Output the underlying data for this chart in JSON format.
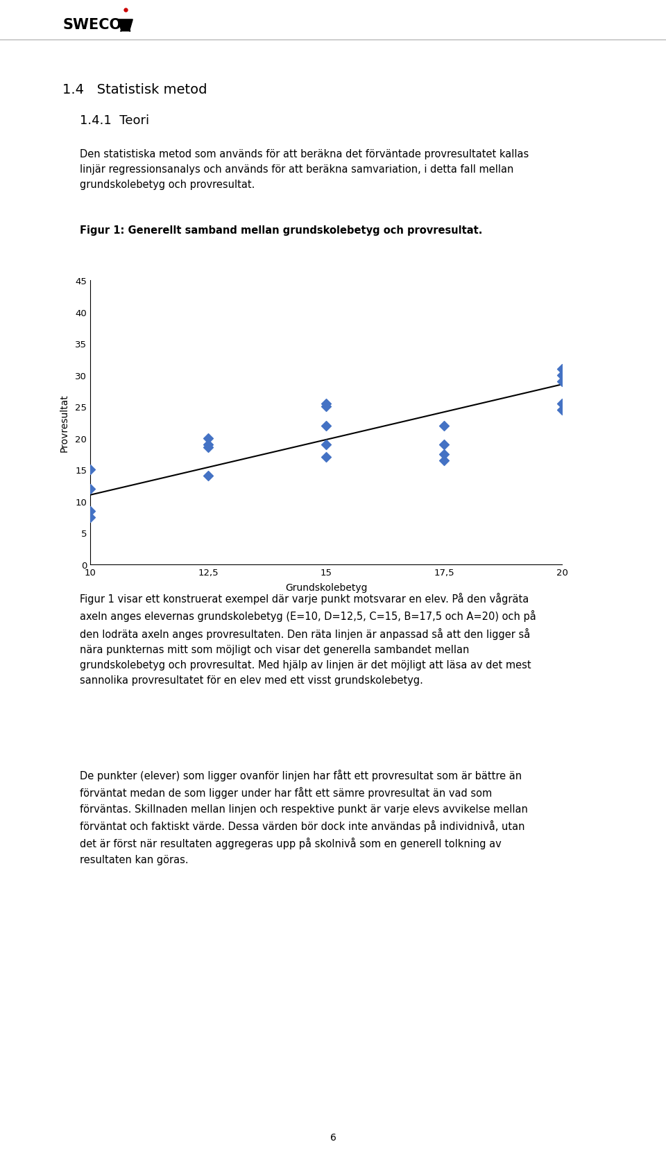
{
  "page_width": 9.6,
  "page_height": 16.74,
  "bg_color": "#ffffff",
  "header_line_color": "#888888",
  "section_title": "1.4   Statistisk metod",
  "subsection_title": "1.4.1  Teori",
  "body_text_1": "Den statistiska metod som används för att beräkna det förväntade provresultatet kallas\nlinjär regressionsanalys och används för att beräkna samvariation, i detta fall mellan\ngrundskolebetyg och provresultat.",
  "fig_caption": "Figur 1: Generellt samband mellan grundskolebetyg och provresultat.",
  "scatter_x": [
    10,
    10,
    10,
    10,
    12.5,
    12.5,
    12.5,
    12.5,
    15,
    15,
    15,
    15,
    15,
    17.5,
    17.5,
    17.5,
    17.5,
    20,
    20,
    20,
    20,
    20
  ],
  "scatter_y": [
    15,
    12,
    8.5,
    7.5,
    20,
    19,
    18.5,
    14,
    22,
    25.5,
    25,
    19,
    17,
    22,
    19,
    17.5,
    16.5,
    31,
    30,
    29,
    25.5,
    24.5
  ],
  "line_x": [
    10,
    20
  ],
  "line_y": [
    11,
    28.5
  ],
  "xlabel": "Grundskolebetyg",
  "ylabel": "Provresultat",
  "xlim": [
    10,
    20
  ],
  "ylim": [
    0,
    45
  ],
  "xticks": [
    10,
    12.5,
    15,
    17.5,
    20
  ],
  "yticks": [
    0,
    5,
    10,
    15,
    20,
    25,
    30,
    35,
    40,
    45
  ],
  "scatter_color": "#4472C4",
  "line_color": "#000000",
  "body_text_2": "Figur 1 visar ett konstruerat exempel där varje punkt motsvarar en elev. På den vågräta\naxeln anges elevernas grundskolebetyg (E=10, D=12,5, C=15, B=17,5 och A=20) och på\nden lodräta axeln anges provresultaten. Den räta linjen är anpassad så att den ligger så\nnära punkternas mitt som möjligt och visar det generella sambandet mellan\ngrundskolebetyg och provresultat. Med hjälp av linjen är det möjligt att läsa av det mest\nsannolika provresultatet för en elev med ett visst grundskolebetyg.",
  "body_text_3": "De punkter (elever) som ligger ovanför linjen har fått ett provresultat som är bättre än\nförväntat medan de som ligger under har fått ett sämre provresultat än vad som\nförväntas. Skillnaden mellan linjen och respektive punkt är varje elevs avvikelse mellan\nförväntat och faktiskt värde. Dessa värden bör dock inte användas på individnivå, utan\ndet är först när resultaten aggregeras upp på skolnivå som en generell tolkning av\nresultaten kan göras.",
  "page_number": "6",
  "section_fontsize": 14,
  "subsection_fontsize": 13,
  "body_fontsize": 10.5,
  "caption_fontsize": 10.5,
  "axis_fontsize": 10,
  "tick_fontsize": 9.5
}
